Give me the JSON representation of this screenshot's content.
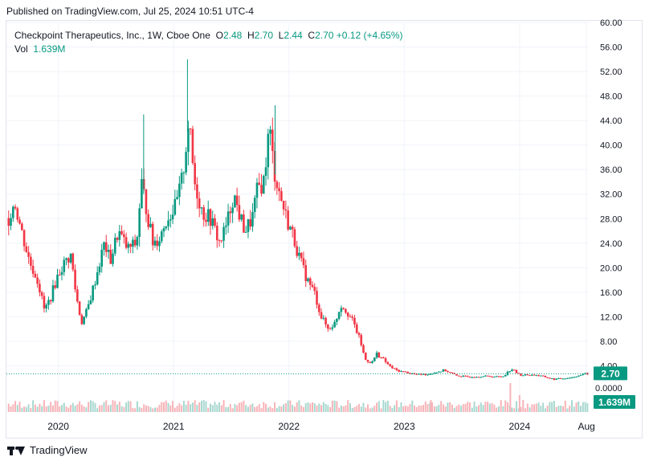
{
  "header": {
    "published": "Published on TradingView.com, Jul 25, 2024 10:51 UTC-4"
  },
  "legend": {
    "symbol": "Checkpoint Therapeutics, Inc., 1W, Cboe One",
    "o_label": "O",
    "o_value": "2.48",
    "h_label": "H",
    "h_value": "2.70",
    "l_label": "L",
    "l_value": "2.44",
    "c_label": "C",
    "c_value": "2.70",
    "change": "+0.12 (+4.65%)",
    "vol_label": "Vol",
    "vol_value": "1.639M"
  },
  "badges": {
    "price": "2.70",
    "volume": "1.639M"
  },
  "footer": {
    "brand": "TradingView"
  },
  "colors": {
    "up": "#089981",
    "down": "#f23645",
    "grid": "#f0f3fa",
    "axis_text": "#131722",
    "volume_up": "#a8d8cf",
    "volume_down": "#f7b4b9"
  },
  "chart_data": {
    "type": "candlestick",
    "timeframe": "1W",
    "y_ticks": [
      "60.00",
      "56.00",
      "52.00",
      "48.00",
      "44.00",
      "40.00",
      "36.00",
      "32.00",
      "28.00",
      "24.00",
      "20.00",
      "16.00",
      "12.00",
      "8.00",
      "4.00"
    ],
    "volume_tick": "0.0000",
    "ylim": [
      -8,
      60
    ],
    "x_ticks": [
      "2020",
      "2021",
      "2022",
      "2023",
      "2024",
      "Aug"
    ],
    "x_tick_dates": [
      2020.0,
      2021.0,
      2022.0,
      2023.0,
      2024.0,
      2024.58
    ],
    "xlim": [
      2019.55,
      2024.6
    ],
    "last_close": 2.7,
    "price_path": [
      [
        2019.55,
        27
      ],
      [
        2019.62,
        31
      ],
      [
        2019.68,
        26
      ],
      [
        2019.75,
        21
      ],
      [
        2019.82,
        18
      ],
      [
        2019.88,
        13
      ],
      [
        2019.93,
        15
      ],
      [
        2020.0,
        19
      ],
      [
        2020.06,
        21
      ],
      [
        2020.11,
        22
      ],
      [
        2020.15,
        16
      ],
      [
        2020.2,
        11
      ],
      [
        2020.25,
        13
      ],
      [
        2020.32,
        18
      ],
      [
        2020.4,
        24
      ],
      [
        2020.45,
        21
      ],
      [
        2020.52,
        26
      ],
      [
        2020.6,
        23
      ],
      [
        2020.68,
        24
      ],
      [
        2020.72,
        34
      ],
      [
        2020.76,
        30
      ],
      [
        2020.82,
        24
      ],
      [
        2020.88,
        25
      ],
      [
        2020.94,
        28
      ],
      [
        2021.02,
        30
      ],
      [
        2021.08,
        35
      ],
      [
        2021.13,
        44
      ],
      [
        2021.18,
        34
      ],
      [
        2021.25,
        29
      ],
      [
        2021.32,
        28
      ],
      [
        2021.4,
        24
      ],
      [
        2021.46,
        27
      ],
      [
        2021.52,
        32
      ],
      [
        2021.58,
        28
      ],
      [
        2021.62,
        26
      ],
      [
        2021.68,
        28
      ],
      [
        2021.73,
        33
      ],
      [
        2021.78,
        34
      ],
      [
        2021.83,
        43
      ],
      [
        2021.87,
        36
      ],
      [
        2021.92,
        32
      ],
      [
        2021.98,
        28
      ],
      [
        2022.04,
        25
      ],
      [
        2022.1,
        21
      ],
      [
        2022.16,
        18
      ],
      [
        2022.22,
        16
      ],
      [
        2022.28,
        12
      ],
      [
        2022.34,
        10
      ],
      [
        2022.4,
        11
      ],
      [
        2022.45,
        14
      ],
      [
        2022.5,
        13
      ],
      [
        2022.56,
        11
      ],
      [
        2022.62,
        8
      ],
      [
        2022.66,
        5
      ],
      [
        2022.72,
        4.5
      ],
      [
        2022.76,
        6
      ],
      [
        2022.82,
        5
      ],
      [
        2022.88,
        3.8
      ],
      [
        2022.94,
        3.2
      ],
      [
        2023.0,
        3.0
      ],
      [
        2023.1,
        2.6
      ],
      [
        2023.2,
        2.6
      ],
      [
        2023.35,
        3.3
      ],
      [
        2023.45,
        2.4
      ],
      [
        2023.55,
        2.2
      ],
      [
        2023.7,
        2.3
      ],
      [
        2023.85,
        2.2
      ],
      [
        2023.93,
        3.5
      ],
      [
        2024.0,
        2.5
      ],
      [
        2024.15,
        2.5
      ],
      [
        2024.3,
        1.8
      ],
      [
        2024.45,
        2.1
      ],
      [
        2024.57,
        2.7
      ]
    ],
    "wick_spikes": [
      {
        "date": 2021.12,
        "high": 54.0
      },
      {
        "date": 2021.88,
        "high": 46.5
      },
      {
        "date": 2020.74,
        "high": 45.0
      }
    ],
    "volume_spikes": [
      {
        "date": 2023.92,
        "value": 12.0
      },
      {
        "date": 2024.0,
        "value": 7.0
      },
      {
        "date": 2023.23,
        "value": 5.0
      }
    ]
  }
}
